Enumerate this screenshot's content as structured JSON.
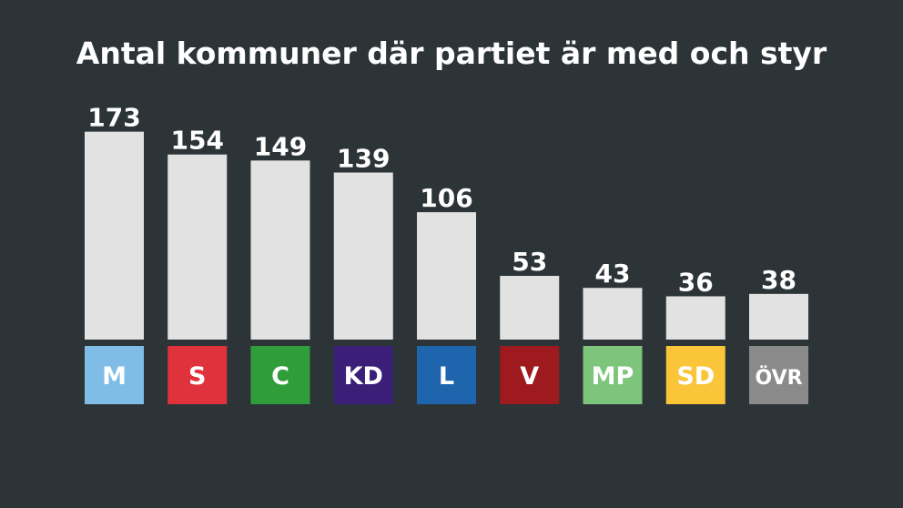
{
  "chart_data": {
    "type": "bar",
    "title": "Antal kommuner där partiet är med och styr",
    "categories": [
      "M",
      "S",
      "C",
      "KD",
      "L",
      "V",
      "MP",
      "SD",
      "ÖVR"
    ],
    "values": [
      173,
      154,
      149,
      139,
      106,
      53,
      43,
      36,
      38
    ],
    "category_colors": [
      "#7fbde6",
      "#e0323c",
      "#2f9e3a",
      "#3a1e78",
      "#1e65ad",
      "#9e1a1e",
      "#7dc57a",
      "#fbc53a",
      "#8a8a8a"
    ],
    "bar_color": "#e2e2e2",
    "xlabel": "",
    "ylabel": "",
    "legend": "none",
    "grid": false
  }
}
